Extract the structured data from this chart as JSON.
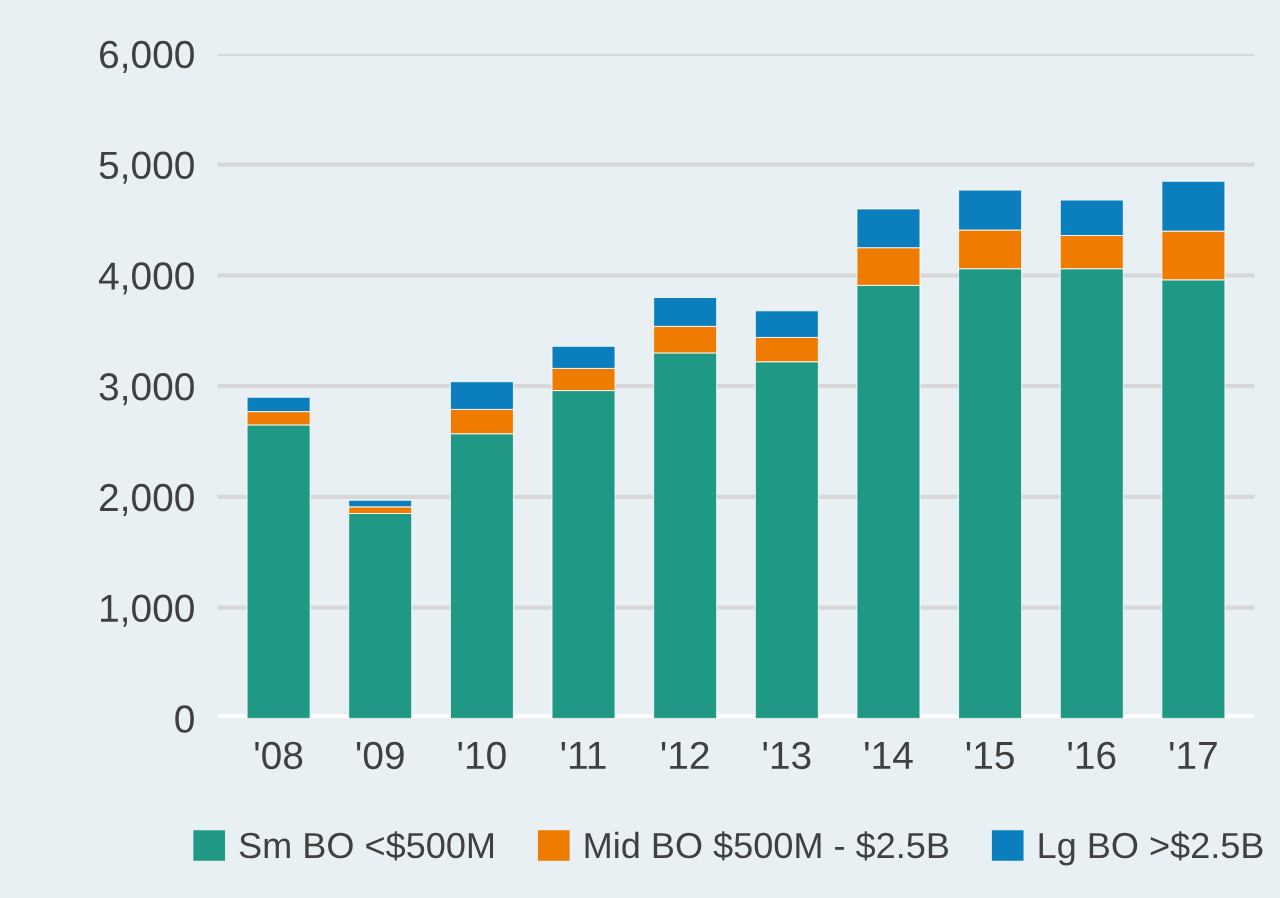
{
  "chart_data": {
    "type": "bar",
    "stacked": true,
    "categories": [
      "'08",
      "'09",
      "'10",
      "'11",
      "'12",
      "'13",
      "'14",
      "'15",
      "'16",
      "'17"
    ],
    "series": [
      {
        "name": "Sm BO <$500M",
        "color": "#1f9886",
        "values": [
          2650,
          1850,
          2570,
          2960,
          3300,
          3220,
          3910,
          4060,
          4060,
          3960
        ]
      },
      {
        "name": "Mid BO $500M - $2.5B",
        "color": "#ef7b00",
        "values": [
          120,
          60,
          220,
          200,
          240,
          220,
          340,
          350,
          300,
          440
        ]
      },
      {
        "name": "Lg BO >$2.5B",
        "color": "#0b7fbe",
        "values": [
          130,
          60,
          250,
          200,
          260,
          240,
          350,
          360,
          320,
          450
        ]
      }
    ],
    "ylim": [
      0,
      6000
    ],
    "yticks": [
      {
        "value": 0,
        "label": "0"
      },
      {
        "value": 1000,
        "label": "1,000"
      },
      {
        "value": 2000,
        "label": "2,000"
      },
      {
        "value": 3000,
        "label": "3,000"
      },
      {
        "value": 4000,
        "label": "4,000"
      },
      {
        "value": 5000,
        "label": "5,000"
      },
      {
        "value": 6000,
        "label": "6,000"
      }
    ],
    "grid": "y",
    "legend": "bottom"
  }
}
